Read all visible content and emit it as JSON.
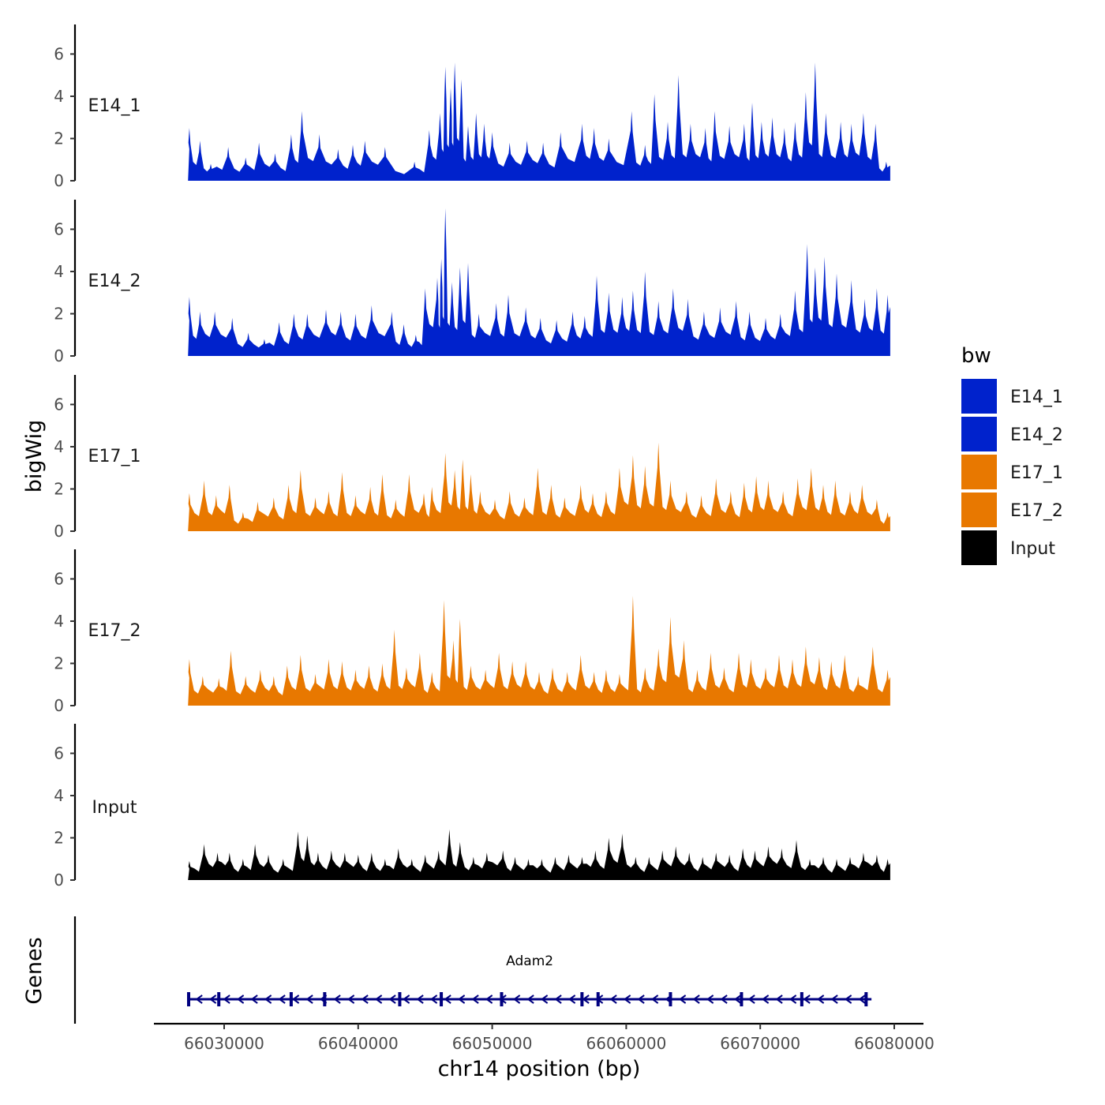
{
  "chart_data": {
    "type": "area",
    "title": "",
    "ylabel_tracks": "bigWig",
    "ylabel_genes": "Genes",
    "xlabel": "chr14 position (bp)",
    "xlim": [
      66024500,
      66080000
    ],
    "ylim": [
      0,
      7.4
    ],
    "y_ticks": [
      0,
      2,
      4,
      6
    ],
    "x_ticks": [
      66030000,
      66040000,
      66050000,
      66060000,
      66070000,
      66080000
    ],
    "x_tick_labels": [
      "66030000",
      "66040000",
      "66050000",
      "66060000",
      "66070000",
      "66080000"
    ],
    "region": [
      66027300,
      66079700
    ],
    "legend": {
      "title": "bw",
      "placement": "right",
      "entries": [
        {
          "label": "E14_1",
          "color": "#0022CC"
        },
        {
          "label": "E14_2",
          "color": "#0022CC"
        },
        {
          "label": "E17_1",
          "color": "#E87800"
        },
        {
          "label": "E17_2",
          "color": "#E87800"
        },
        {
          "label": "Input",
          "color": "#000000"
        }
      ]
    },
    "series": [
      {
        "name": "E14_1",
        "color": "#0022CC",
        "peaks": [
          [
            66027400,
            2.5
          ],
          [
            66028200,
            1.9
          ],
          [
            66029000,
            0.8
          ],
          [
            66030300,
            1.6
          ],
          [
            66031600,
            1.1
          ],
          [
            66032600,
            1.8
          ],
          [
            66033800,
            1.3
          ],
          [
            66035000,
            2.2
          ],
          [
            66035800,
            3.3
          ],
          [
            66037100,
            2.2
          ],
          [
            66038500,
            1.5
          ],
          [
            66039600,
            1.7
          ],
          [
            66040500,
            1.9
          ],
          [
            66042000,
            1.6
          ],
          [
            66044200,
            0.9
          ],
          [
            66045300,
            2.4
          ],
          [
            66046100,
            3.2
          ],
          [
            66046500,
            5.4
          ],
          [
            66046900,
            4.4
          ],
          [
            66047200,
            5.6
          ],
          [
            66047700,
            4.8
          ],
          [
            66048200,
            2.6
          ],
          [
            66048800,
            3.2
          ],
          [
            66049400,
            2.7
          ],
          [
            66050000,
            2.3
          ],
          [
            66051300,
            1.8
          ],
          [
            66052600,
            1.9
          ],
          [
            66053800,
            1.8
          ],
          [
            66055100,
            2.3
          ],
          [
            66056700,
            2.7
          ],
          [
            66057600,
            2.5
          ],
          [
            66058700,
            2.0
          ],
          [
            66060400,
            3.3
          ],
          [
            66061400,
            1.7
          ],
          [
            66062100,
            4.1
          ],
          [
            66063100,
            2.8
          ],
          [
            66063900,
            5.0
          ],
          [
            66064800,
            2.7
          ],
          [
            66065900,
            2.5
          ],
          [
            66066600,
            3.3
          ],
          [
            66067700,
            2.6
          ],
          [
            66068800,
            2.7
          ],
          [
            66069400,
            3.7
          ],
          [
            66070100,
            2.8
          ],
          [
            66070900,
            3.0
          ],
          [
            66071800,
            2.5
          ],
          [
            66072600,
            2.8
          ],
          [
            66073400,
            4.2
          ],
          [
            66074100,
            5.6
          ],
          [
            66074900,
            3.2
          ],
          [
            66076000,
            2.8
          ],
          [
            66076800,
            2.7
          ],
          [
            66077700,
            3.2
          ],
          [
            66078600,
            2.7
          ],
          [
            66079400,
            0.9
          ]
        ]
      },
      {
        "name": "E14_2",
        "color": "#0022CC",
        "peaks": [
          [
            66027400,
            2.8
          ],
          [
            66028200,
            2.1
          ],
          [
            66029300,
            2.1
          ],
          [
            66030600,
            1.8
          ],
          [
            66031800,
            1.1
          ],
          [
            66033000,
            0.8
          ],
          [
            66034100,
            1.6
          ],
          [
            66035200,
            2.0
          ],
          [
            66036200,
            2.0
          ],
          [
            66037600,
            2.2
          ],
          [
            66038700,
            2.1
          ],
          [
            66039800,
            2.0
          ],
          [
            66041000,
            2.4
          ],
          [
            66042500,
            2.1
          ],
          [
            66043400,
            1.5
          ],
          [
            66044300,
            1.0
          ],
          [
            66045000,
            3.2
          ],
          [
            66045900,
            3.7
          ],
          [
            66046200,
            4.6
          ],
          [
            66046500,
            7.0
          ],
          [
            66047000,
            3.5
          ],
          [
            66047600,
            4.2
          ],
          [
            66048200,
            4.4
          ],
          [
            66049000,
            2.0
          ],
          [
            66050300,
            2.5
          ],
          [
            66051200,
            2.9
          ],
          [
            66052500,
            2.3
          ],
          [
            66053600,
            1.8
          ],
          [
            66054800,
            1.7
          ],
          [
            66056000,
            2.1
          ],
          [
            66056900,
            1.9
          ],
          [
            66057800,
            3.8
          ],
          [
            66058700,
            3.0
          ],
          [
            66059700,
            2.8
          ],
          [
            66060500,
            3.1
          ],
          [
            66061400,
            4.0
          ],
          [
            66062400,
            2.6
          ],
          [
            66063500,
            3.2
          ],
          [
            66064600,
            2.7
          ],
          [
            66065800,
            2.1
          ],
          [
            66067000,
            2.3
          ],
          [
            66068200,
            2.6
          ],
          [
            66069200,
            2.1
          ],
          [
            66070400,
            1.8
          ],
          [
            66071500,
            2.0
          ],
          [
            66072600,
            3.1
          ],
          [
            66073500,
            5.3
          ],
          [
            66074100,
            4.2
          ],
          [
            66074800,
            4.7
          ],
          [
            66075700,
            3.9
          ],
          [
            66076800,
            3.6
          ],
          [
            66077800,
            2.7
          ],
          [
            66078700,
            3.2
          ],
          [
            66079500,
            2.9
          ]
        ]
      },
      {
        "name": "E17_1",
        "color": "#E87800",
        "peaks": [
          [
            66027400,
            1.8
          ],
          [
            66028500,
            2.4
          ],
          [
            66029400,
            1.7
          ],
          [
            66030400,
            2.2
          ],
          [
            66031400,
            0.9
          ],
          [
            66032500,
            1.4
          ],
          [
            66033700,
            1.6
          ],
          [
            66034800,
            2.2
          ],
          [
            66035700,
            2.9
          ],
          [
            66036800,
            1.6
          ],
          [
            66037800,
            1.9
          ],
          [
            66038800,
            2.8
          ],
          [
            66039800,
            1.7
          ],
          [
            66040900,
            2.1
          ],
          [
            66041800,
            2.7
          ],
          [
            66042800,
            1.5
          ],
          [
            66043800,
            2.7
          ],
          [
            66044900,
            1.8
          ],
          [
            66045500,
            2.1
          ],
          [
            66046500,
            3.7
          ],
          [
            66047200,
            2.9
          ],
          [
            66047800,
            3.4
          ],
          [
            66048400,
            2.7
          ],
          [
            66049100,
            1.9
          ],
          [
            66050200,
            1.5
          ],
          [
            66051300,
            1.9
          ],
          [
            66052400,
            1.6
          ],
          [
            66053400,
            3.0
          ],
          [
            66054400,
            2.2
          ],
          [
            66055400,
            1.6
          ],
          [
            66056600,
            2.2
          ],
          [
            66057500,
            1.8
          ],
          [
            66058500,
            1.9
          ],
          [
            66059500,
            3.0
          ],
          [
            66060500,
            3.6
          ],
          [
            66061400,
            3.1
          ],
          [
            66062400,
            4.2
          ],
          [
            66063300,
            2.4
          ],
          [
            66064500,
            1.9
          ],
          [
            66065600,
            1.7
          ],
          [
            66066700,
            2.5
          ],
          [
            66067800,
            1.9
          ],
          [
            66068800,
            2.3
          ],
          [
            66069700,
            2.6
          ],
          [
            66070600,
            2.4
          ],
          [
            66071700,
            1.9
          ],
          [
            66072800,
            2.5
          ],
          [
            66073800,
            3.0
          ],
          [
            66074700,
            2.2
          ],
          [
            66075600,
            2.4
          ],
          [
            66076700,
            1.9
          ],
          [
            66077600,
            2.2
          ],
          [
            66078700,
            1.5
          ],
          [
            66079500,
            0.9
          ]
        ]
      },
      {
        "name": "E17_2",
        "color": "#E87800",
        "peaks": [
          [
            66027400,
            2.2
          ],
          [
            66028400,
            1.4
          ],
          [
            66029600,
            1.3
          ],
          [
            66030500,
            2.6
          ],
          [
            66031600,
            1.4
          ],
          [
            66032700,
            1.7
          ],
          [
            66033700,
            1.4
          ],
          [
            66034700,
            1.9
          ],
          [
            66035700,
            2.4
          ],
          [
            66036800,
            1.5
          ],
          [
            66037800,
            2.2
          ],
          [
            66038800,
            2.1
          ],
          [
            66039800,
            1.7
          ],
          [
            66040800,
            1.9
          ],
          [
            66041800,
            2.0
          ],
          [
            66042700,
            3.6
          ],
          [
            66043600,
            1.8
          ],
          [
            66044600,
            2.5
          ],
          [
            66045500,
            1.6
          ],
          [
            66046400,
            5.0
          ],
          [
            66047100,
            3.1
          ],
          [
            66047600,
            4.1
          ],
          [
            66048400,
            1.9
          ],
          [
            66049500,
            1.7
          ],
          [
            66050500,
            2.5
          ],
          [
            66051500,
            2.1
          ],
          [
            66052500,
            2.1
          ],
          [
            66053500,
            1.6
          ],
          [
            66054500,
            1.8
          ],
          [
            66055600,
            1.6
          ],
          [
            66056600,
            2.4
          ],
          [
            66057600,
            1.6
          ],
          [
            66058500,
            1.7
          ],
          [
            66059500,
            1.5
          ],
          [
            66060500,
            5.2
          ],
          [
            66061400,
            1.8
          ],
          [
            66062400,
            2.7
          ],
          [
            66063300,
            4.2
          ],
          [
            66064300,
            3.1
          ],
          [
            66065300,
            1.7
          ],
          [
            66066300,
            2.5
          ],
          [
            66067300,
            1.8
          ],
          [
            66068400,
            2.5
          ],
          [
            66069300,
            2.2
          ],
          [
            66070400,
            1.8
          ],
          [
            66071400,
            2.4
          ],
          [
            66072400,
            2.2
          ],
          [
            66073400,
            2.8
          ],
          [
            66074400,
            2.3
          ],
          [
            66075300,
            2.1
          ],
          [
            66076300,
            2.4
          ],
          [
            66077300,
            1.4
          ],
          [
            66078400,
            2.8
          ],
          [
            66079500,
            1.7
          ]
        ]
      },
      {
        "name": "Input",
        "color": "#000000",
        "peaks": [
          [
            66027400,
            0.9
          ],
          [
            66028500,
            1.7
          ],
          [
            66029500,
            1.3
          ],
          [
            66030400,
            1.3
          ],
          [
            66031400,
            1.0
          ],
          [
            66032300,
            1.7
          ],
          [
            66033300,
            1.2
          ],
          [
            66034400,
            1.0
          ],
          [
            66035500,
            2.3
          ],
          [
            66036200,
            2.1
          ],
          [
            66037000,
            1.3
          ],
          [
            66038000,
            1.4
          ],
          [
            66039000,
            1.3
          ],
          [
            66040000,
            1.2
          ],
          [
            66041000,
            1.3
          ],
          [
            66042000,
            1.0
          ],
          [
            66043000,
            1.5
          ],
          [
            66044000,
            1.0
          ],
          [
            66045000,
            1.2
          ],
          [
            66046000,
            1.4
          ],
          [
            66046800,
            2.4
          ],
          [
            66047600,
            1.8
          ],
          [
            66048600,
            1.1
          ],
          [
            66049600,
            1.3
          ],
          [
            66050800,
            1.4
          ],
          [
            66051700,
            1.1
          ],
          [
            66052700,
            1.0
          ],
          [
            66053700,
            1.0
          ],
          [
            66054700,
            1.1
          ],
          [
            66055700,
            1.2
          ],
          [
            66056700,
            1.1
          ],
          [
            66057700,
            1.4
          ],
          [
            66058700,
            2.0
          ],
          [
            66059700,
            2.2
          ],
          [
            66060700,
            1.1
          ],
          [
            66061700,
            1.1
          ],
          [
            66062700,
            1.4
          ],
          [
            66063700,
            1.6
          ],
          [
            66064700,
            1.3
          ],
          [
            66065700,
            1.1
          ],
          [
            66066700,
            1.3
          ],
          [
            66067700,
            1.2
          ],
          [
            66068700,
            1.5
          ],
          [
            66069600,
            1.4
          ],
          [
            66070600,
            1.6
          ],
          [
            66071600,
            1.5
          ],
          [
            66072700,
            1.9
          ],
          [
            66073700,
            1.0
          ],
          [
            66074700,
            1.1
          ],
          [
            66075700,
            1.0
          ],
          [
            66076700,
            1.1
          ],
          [
            66077700,
            1.3
          ],
          [
            66078700,
            1.2
          ],
          [
            66079500,
            1.0
          ]
        ]
      }
    ],
    "genes": [
      {
        "name": "Adam2",
        "start": 66027300,
        "end": 66078300,
        "strand": "-",
        "exons": [
          66027350,
          66029600,
          66035000,
          66037500,
          66043100,
          66046200,
          66050700,
          66056700,
          66057900,
          66063300,
          66068600,
          66073100,
          66077900
        ]
      }
    ]
  }
}
